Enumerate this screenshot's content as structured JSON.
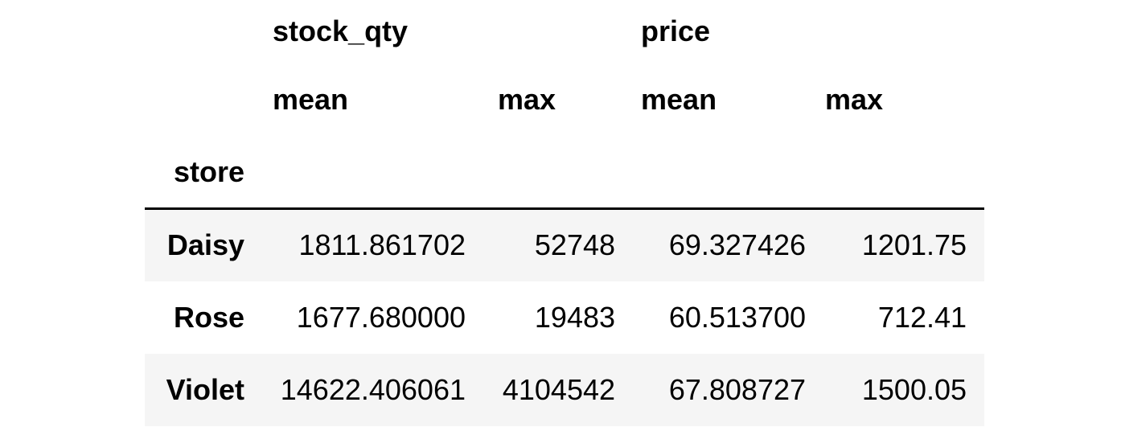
{
  "table": {
    "column_level_0": [
      "stock_qty",
      "price"
    ],
    "column_level_1": [
      "mean",
      "max",
      "mean",
      "max"
    ],
    "index_name": "store",
    "rows": [
      {
        "index": "Daisy",
        "values": [
          "1811.861702",
          "52748",
          "69.327426",
          "1201.75"
        ]
      },
      {
        "index": "Rose",
        "values": [
          "1677.680000",
          "19483",
          "60.513700",
          "712.41"
        ]
      },
      {
        "index": "Violet",
        "values": [
          "14622.406061",
          "4104542",
          "67.808727",
          "1500.05"
        ]
      }
    ]
  },
  "colors": {
    "stripe_background": "#f5f5f5",
    "header_rule": "#000000",
    "text": "#000000"
  }
}
